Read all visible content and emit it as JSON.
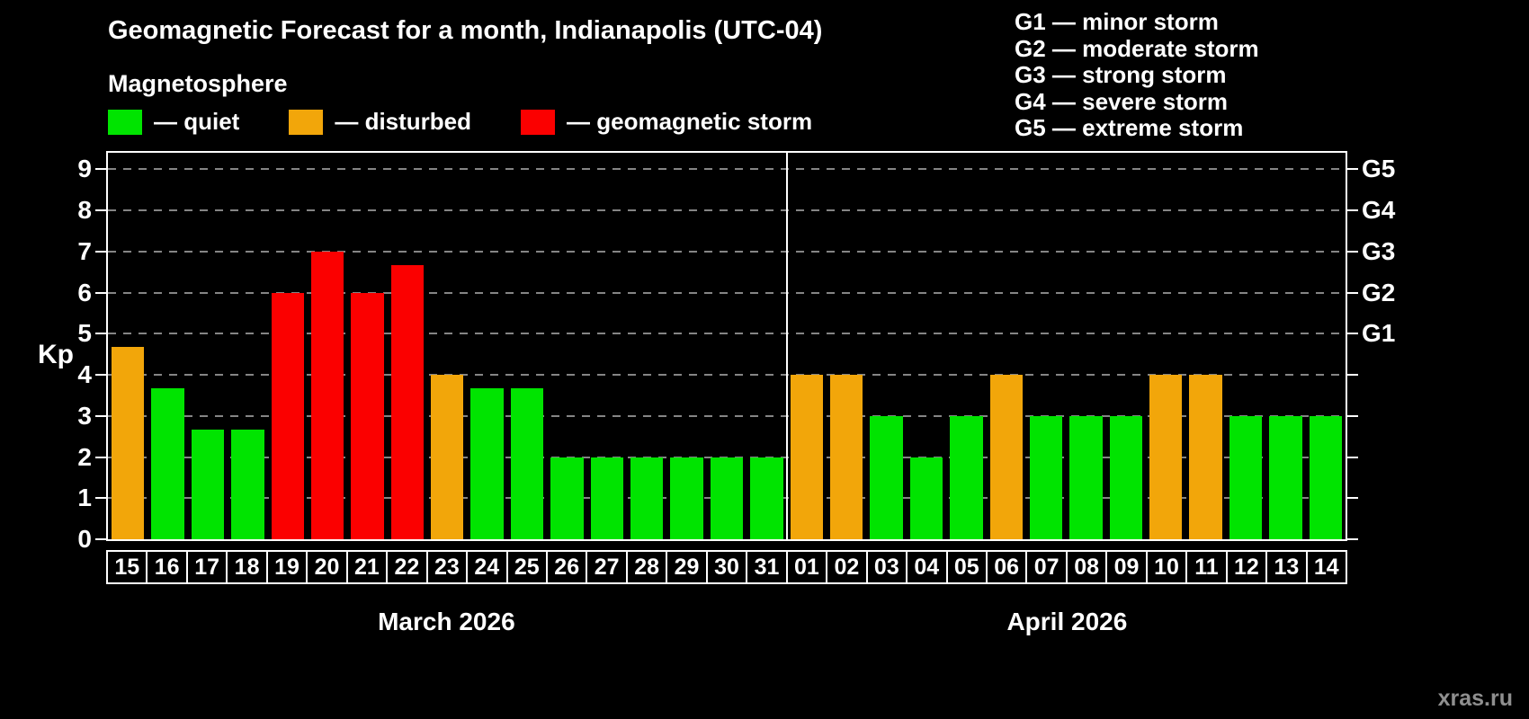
{
  "header": {
    "title": "Geomagnetic Forecast for a month, Indianapolis (UTC-04)",
    "subtitle": "Magnetosphere"
  },
  "legend": {
    "items": [
      {
        "key": "quiet",
        "label": "— quiet",
        "color": "#00e400"
      },
      {
        "key": "disturbed",
        "label": "— disturbed",
        "color": "#f2a60a"
      },
      {
        "key": "storm",
        "label": "— geomagnetic storm",
        "color": "#fb0000"
      }
    ]
  },
  "g_scale_legend": {
    "items": [
      "G1 — minor storm",
      "G2 — moderate storm",
      "G3 — strong storm",
      "G4 — severe storm",
      "G5 — extreme storm"
    ]
  },
  "watermark": "xras.ru",
  "chart_data": {
    "type": "bar",
    "title": "Geomagnetic Forecast for a month, Indianapolis (UTC-04)",
    "ylabel": "Kp",
    "ylim": [
      0,
      9
    ],
    "y_max_display": 9.4,
    "yticks": [
      0,
      1,
      2,
      3,
      4,
      5,
      6,
      7,
      8,
      9
    ],
    "grid": "dashed horizontal",
    "legend_position": "top",
    "colors": {
      "quiet": "#00e400",
      "disturbed": "#f2a60a",
      "storm": "#fb0000"
    },
    "right_axis": [
      {
        "label": "G5",
        "kp": 9
      },
      {
        "label": "G4",
        "kp": 8
      },
      {
        "label": "G3",
        "kp": 7
      },
      {
        "label": "G2",
        "kp": 6
      },
      {
        "label": "G1",
        "kp": 5
      }
    ],
    "months": [
      {
        "label": "March 2026",
        "days": [
          {
            "day": "15",
            "value": 4.67,
            "status": "disturbed"
          },
          {
            "day": "16",
            "value": 3.67,
            "status": "quiet"
          },
          {
            "day": "17",
            "value": 2.67,
            "status": "quiet"
          },
          {
            "day": "18",
            "value": 2.67,
            "status": "quiet"
          },
          {
            "day": "19",
            "value": 6,
            "status": "storm"
          },
          {
            "day": "20",
            "value": 7,
            "status": "storm"
          },
          {
            "day": "21",
            "value": 6,
            "status": "storm"
          },
          {
            "day": "22",
            "value": 6.67,
            "status": "storm"
          },
          {
            "day": "23",
            "value": 4,
            "status": "disturbed"
          },
          {
            "day": "24",
            "value": 3.67,
            "status": "quiet"
          },
          {
            "day": "25",
            "value": 3.67,
            "status": "quiet"
          },
          {
            "day": "26",
            "value": 2,
            "status": "quiet"
          },
          {
            "day": "27",
            "value": 2,
            "status": "quiet"
          },
          {
            "day": "28",
            "value": 2,
            "status": "quiet"
          },
          {
            "day": "29",
            "value": 2,
            "status": "quiet"
          },
          {
            "day": "30",
            "value": 2,
            "status": "quiet"
          },
          {
            "day": "31",
            "value": 2,
            "status": "quiet"
          }
        ]
      },
      {
        "label": "April 2026",
        "days": [
          {
            "day": "01",
            "value": 4,
            "status": "disturbed"
          },
          {
            "day": "02",
            "value": 4,
            "status": "disturbed"
          },
          {
            "day": "03",
            "value": 3,
            "status": "quiet"
          },
          {
            "day": "04",
            "value": 2,
            "status": "quiet"
          },
          {
            "day": "05",
            "value": 3,
            "status": "quiet"
          },
          {
            "day": "06",
            "value": 4,
            "status": "disturbed"
          },
          {
            "day": "07",
            "value": 3,
            "status": "quiet"
          },
          {
            "day": "08",
            "value": 3,
            "status": "quiet"
          },
          {
            "day": "09",
            "value": 3,
            "status": "quiet"
          },
          {
            "day": "10",
            "value": 4,
            "status": "disturbed"
          },
          {
            "day": "11",
            "value": 4,
            "status": "disturbed"
          },
          {
            "day": "12",
            "value": 3,
            "status": "quiet"
          },
          {
            "day": "13",
            "value": 3,
            "status": "quiet"
          },
          {
            "day": "14",
            "value": 3,
            "status": "quiet"
          }
        ]
      }
    ]
  }
}
